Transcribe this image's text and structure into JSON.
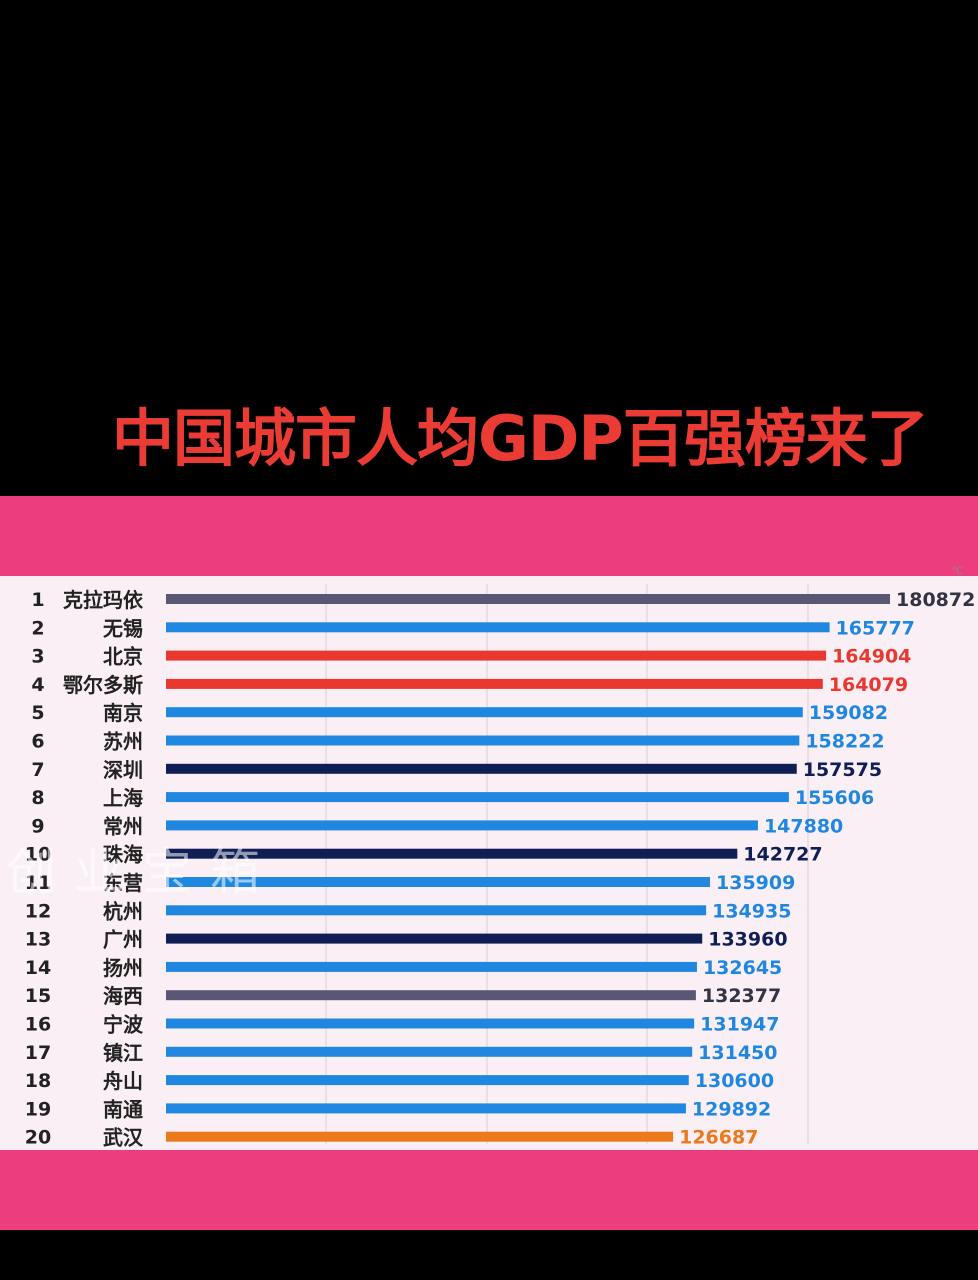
{
  "headline": "中国城市人均GDP百强榜来了",
  "watermark": "创业宝箱",
  "corner_mark": "℃",
  "colors": {
    "background": "#000000",
    "band": "#ec3e7e",
    "panel": "#fbeff6",
    "headline": "#ea3b34"
  },
  "chart_data": {
    "type": "bar",
    "orientation": "horizontal",
    "title": "",
    "xlabel": "",
    "ylabel": "",
    "xlim": [
      0,
      180872
    ],
    "grid": true,
    "ranks": [
      "1",
      "2",
      "3",
      "4",
      "5",
      "6",
      "7",
      "8",
      "9",
      "10",
      "11",
      "12",
      "13",
      "14",
      "15",
      "16",
      "17",
      "18",
      "19",
      "20"
    ],
    "categories": [
      "克拉玛依",
      "无锡",
      "北京",
      "鄂尔多斯",
      "南京",
      "苏州",
      "深圳",
      "上海",
      "常州",
      "珠海",
      "东营",
      "杭州",
      "广州",
      "扬州",
      "海西",
      "宁波",
      "镇江",
      "舟山",
      "南通",
      "武汉"
    ],
    "values": [
      180872,
      165777,
      164904,
      164079,
      159082,
      158222,
      157575,
      155606,
      147880,
      142727,
      135909,
      134935,
      133960,
      132645,
      132377,
      131947,
      131450,
      130600,
      129892,
      126687
    ],
    "colors": [
      "#5a5775",
      "#1f87e0",
      "#e8382f",
      "#e8382f",
      "#1f87e0",
      "#1f87e0",
      "#0f1f55",
      "#1f87e0",
      "#1f87e0",
      "#0f1f55",
      "#1f87e0",
      "#1f87e0",
      "#0f1f55",
      "#1f87e0",
      "#5a5775",
      "#1f87e0",
      "#1f87e0",
      "#1f87e0",
      "#1f87e0",
      "#ec7a1c"
    ],
    "label_colors": [
      "#333344",
      "#1f87e0",
      "#e8382f",
      "#e8382f",
      "#1f87e0",
      "#1f87e0",
      "#0f1f55",
      "#1f87e0",
      "#1f87e0",
      "#0f1f55",
      "#1f87e0",
      "#1f87e0",
      "#0f1f55",
      "#1f87e0",
      "#333344",
      "#1f87e0",
      "#1f87e0",
      "#1f87e0",
      "#1f87e0",
      "#ec7a1c"
    ]
  }
}
